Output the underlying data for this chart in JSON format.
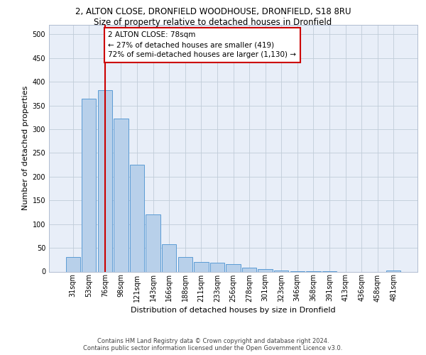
{
  "title_line1": "2, ALTON CLOSE, DRONFIELD WOODHOUSE, DRONFIELD, S18 8RU",
  "title_line2": "Size of property relative to detached houses in Dronfield",
  "xlabel": "Distribution of detached houses by size in Dronfield",
  "ylabel": "Number of detached properties",
  "footer_line1": "Contains HM Land Registry data © Crown copyright and database right 2024.",
  "footer_line2": "Contains public sector information licensed under the Open Government Licence v3.0.",
  "categories": [
    "31sqm",
    "53sqm",
    "76sqm",
    "98sqm",
    "121sqm",
    "143sqm",
    "166sqm",
    "188sqm",
    "211sqm",
    "233sqm",
    "256sqm",
    "278sqm",
    "301sqm",
    "323sqm",
    "346sqm",
    "368sqm",
    "391sqm",
    "413sqm",
    "436sqm",
    "458sqm",
    "481sqm"
  ],
  "values": [
    30,
    365,
    382,
    323,
    225,
    120,
    58,
    30,
    20,
    18,
    15,
    8,
    5,
    2,
    1,
    1,
    1,
    0,
    0,
    0,
    2
  ],
  "bar_color": "#b8d0ea",
  "bar_edge_color": "#5b9bd5",
  "vline_index": 2,
  "vline_color": "#cc0000",
  "annotation_text": "2 ALTON CLOSE: 78sqm\n← 27% of detached houses are smaller (419)\n72% of semi-detached houses are larger (1,130) →",
  "annotation_box_facecolor": "#ffffff",
  "annotation_box_edgecolor": "#cc0000",
  "ylim_max": 520,
  "yticks": [
    0,
    50,
    100,
    150,
    200,
    250,
    300,
    350,
    400,
    450,
    500
  ],
  "bg_color": "#e8eef8",
  "title1_fontsize": 8.5,
  "title2_fontsize": 8.5,
  "xlabel_fontsize": 8.0,
  "ylabel_fontsize": 8.0,
  "tick_fontsize": 7.0,
  "annotation_fontsize": 7.5,
  "footer_fontsize": 6.0
}
